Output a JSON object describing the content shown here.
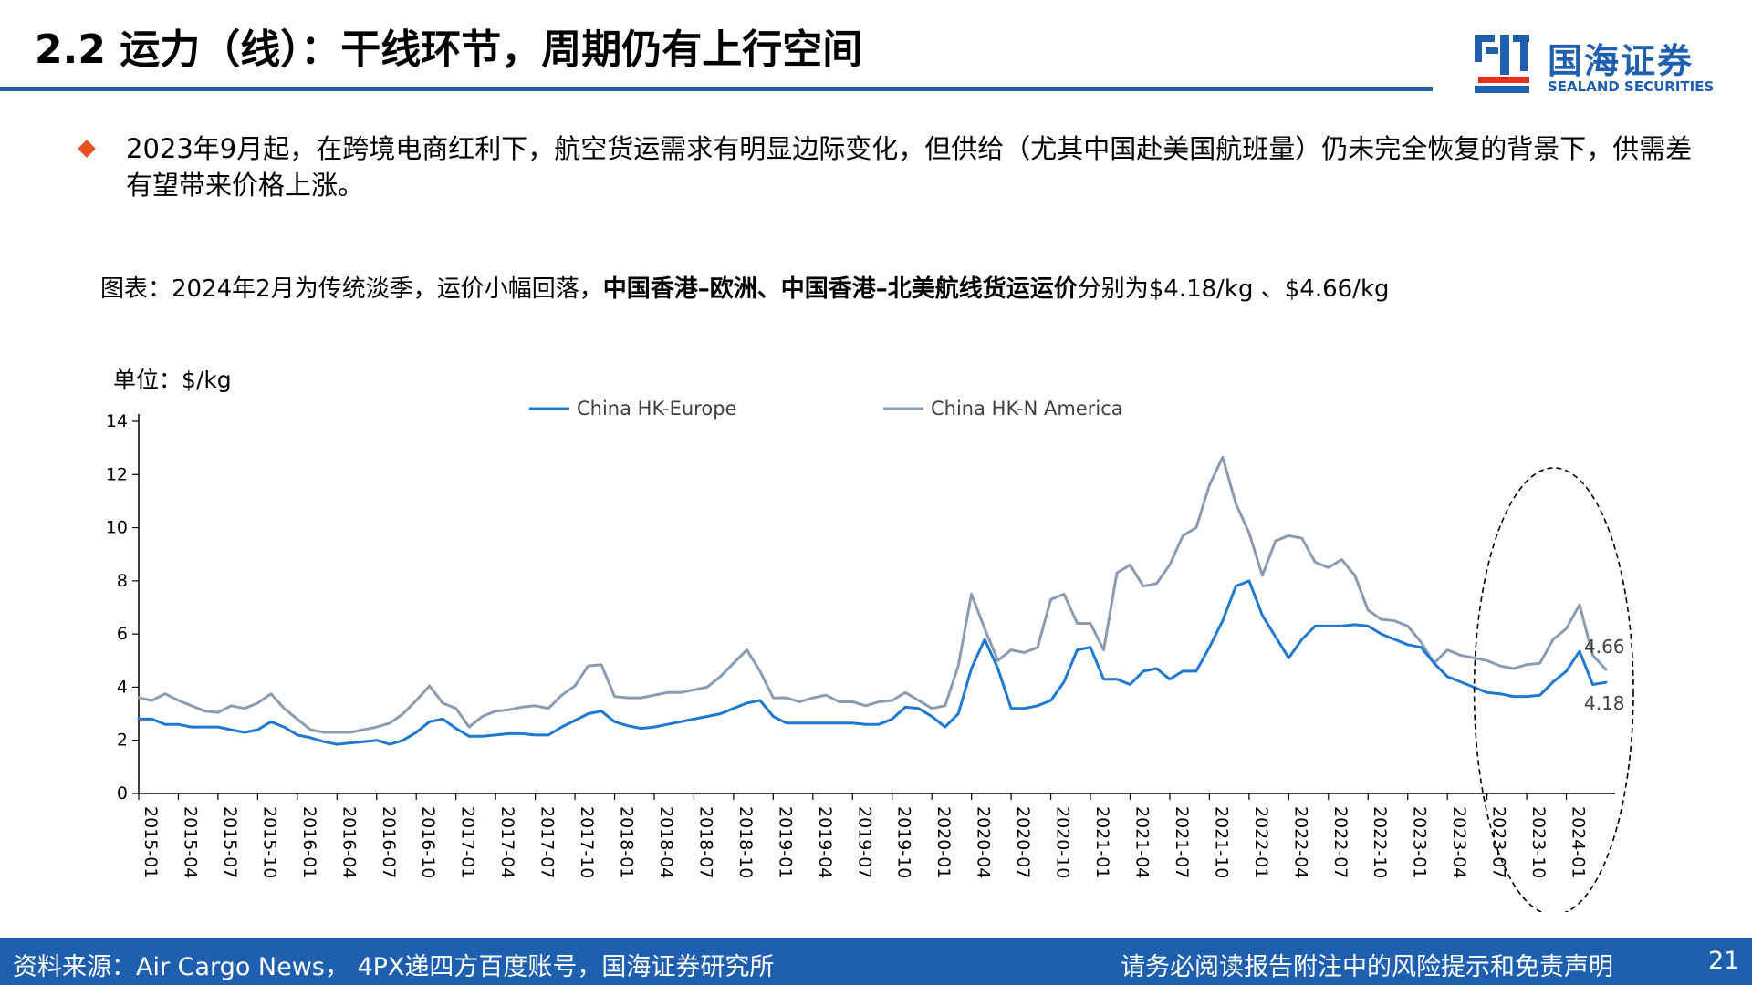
{
  "header": {
    "title": "2.2 运力（线）：干线环节，周期仍有上行空间",
    "logo_cn": "国海证券",
    "logo_en": "SEALAND SECURITIES"
  },
  "body": {
    "bullet_text": "2023年9月起，在跨境电商红利下，航空货运需求有明显边际变化，但供给（尤其中国赴美国航班量）仍未完全恢复的背景下，供需差有望带来价格上涨。",
    "caption_prefix": "图表：2024年2月为传统淡季，运价小幅回落，",
    "caption_bold": "中国香港–欧洲、中国香港–北美航线货运运价",
    "caption_suffix": "分别为$4.18/kg 、$4.66/kg"
  },
  "chart_data": {
    "type": "line",
    "unit_label": "单位：$/kg",
    "ylim": [
      0,
      14
    ],
    "y_ticks": [
      0,
      2,
      4,
      6,
      8,
      10,
      12,
      14
    ],
    "x_start": "2015-01",
    "x_tick_labels": [
      "2015-01",
      "2015-04",
      "2015-07",
      "2015-10",
      "2016-01",
      "2016-04",
      "2016-07",
      "2016-10",
      "2017-01",
      "2017-04",
      "2017-07",
      "2017-10",
      "2018-01",
      "2018-04",
      "2018-07",
      "2018-10",
      "2019-01",
      "2019-04",
      "2019-07",
      "2019-10",
      "2020-01",
      "2020-04",
      "2020-07",
      "2020-10",
      "2021-01",
      "2021-04",
      "2021-07",
      "2021-10",
      "2022-01",
      "2022-04",
      "2022-07",
      "2022-10",
      "2023-01",
      "2023-04",
      "2023-07",
      "2023-10",
      "2024-01"
    ],
    "series": [
      {
        "name": "China HK-Europe",
        "color": "#1f78d1",
        "values": [
          2.8,
          2.8,
          2.6,
          2.6,
          2.5,
          2.5,
          2.5,
          2.4,
          2.3,
          2.4,
          2.7,
          2.5,
          2.2,
          2.1,
          1.95,
          1.85,
          1.9,
          1.95,
          2.0,
          1.85,
          2.0,
          2.3,
          2.7,
          2.8,
          2.45,
          2.15,
          2.15,
          2.2,
          2.25,
          2.25,
          2.2,
          2.2,
          2.5,
          2.75,
          3.0,
          3.1,
          2.7,
          2.55,
          2.45,
          2.5,
          2.6,
          2.7,
          2.8,
          2.9,
          3.0,
          3.2,
          3.4,
          3.5,
          2.9,
          2.65,
          2.65,
          2.65,
          2.65,
          2.65,
          2.65,
          2.6,
          2.6,
          2.8,
          3.25,
          3.2,
          2.9,
          2.5,
          3.0,
          4.7,
          5.8,
          4.7,
          3.2,
          3.2,
          3.3,
          3.5,
          4.2,
          5.4,
          5.5,
          4.3,
          4.3,
          4.1,
          4.6,
          4.7,
          4.3,
          4.6,
          4.6,
          5.5,
          6.5,
          7.8,
          8.0,
          6.7,
          5.9,
          5.1,
          5.8,
          6.3,
          6.3,
          6.3,
          6.35,
          6.3,
          6.0,
          5.8,
          5.6,
          5.5,
          4.9,
          4.4,
          4.2,
          4.0,
          3.8,
          3.75,
          3.65,
          3.65,
          3.7,
          4.2,
          4.6,
          5.35,
          4.1,
          4.18
        ]
      },
      {
        "name": "China HK-N America",
        "color": "#8c9cb0",
        "values": [
          3.6,
          3.5,
          3.75,
          3.5,
          3.3,
          3.1,
          3.05,
          3.3,
          3.2,
          3.4,
          3.75,
          3.2,
          2.8,
          2.4,
          2.3,
          2.3,
          2.3,
          2.4,
          2.5,
          2.65,
          3.0,
          3.5,
          4.05,
          3.4,
          3.2,
          2.5,
          2.9,
          3.1,
          3.15,
          3.25,
          3.3,
          3.2,
          3.7,
          4.05,
          4.8,
          4.85,
          3.65,
          3.6,
          3.6,
          3.7,
          3.8,
          3.8,
          3.9,
          4.0,
          4.4,
          4.9,
          5.4,
          4.6,
          3.6,
          3.6,
          3.45,
          3.6,
          3.7,
          3.45,
          3.45,
          3.3,
          3.45,
          3.5,
          3.8,
          3.5,
          3.2,
          3.3,
          4.8,
          7.5,
          6.2,
          5.0,
          5.4,
          5.3,
          5.5,
          7.3,
          7.5,
          6.4,
          6.4,
          5.4,
          8.3,
          8.6,
          7.8,
          7.9,
          8.6,
          9.7,
          10.0,
          11.6,
          12.65,
          10.9,
          9.8,
          8.2,
          9.5,
          9.7,
          9.6,
          8.7,
          8.5,
          8.8,
          8.2,
          6.9,
          6.55,
          6.5,
          6.3,
          5.7,
          4.9,
          5.4,
          5.2,
          5.1,
          5.0,
          4.8,
          4.7,
          4.85,
          4.9,
          5.8,
          6.2,
          7.1,
          5.2,
          4.66
        ]
      }
    ],
    "annotations": [
      {
        "series": "China HK-N America",
        "label": "4.66"
      },
      {
        "series": "China HK-Europe",
        "label": "4.18"
      }
    ],
    "highlight": "dashed ellipse around 2023-07 to 2024-02"
  },
  "footer": {
    "source": "资料来源：Air Cargo News， 4PX递四方百度账号，国海证券研究所",
    "disclaimer": "请务必阅读报告附注中的风险提示和免责声明",
    "page_number": "21"
  }
}
